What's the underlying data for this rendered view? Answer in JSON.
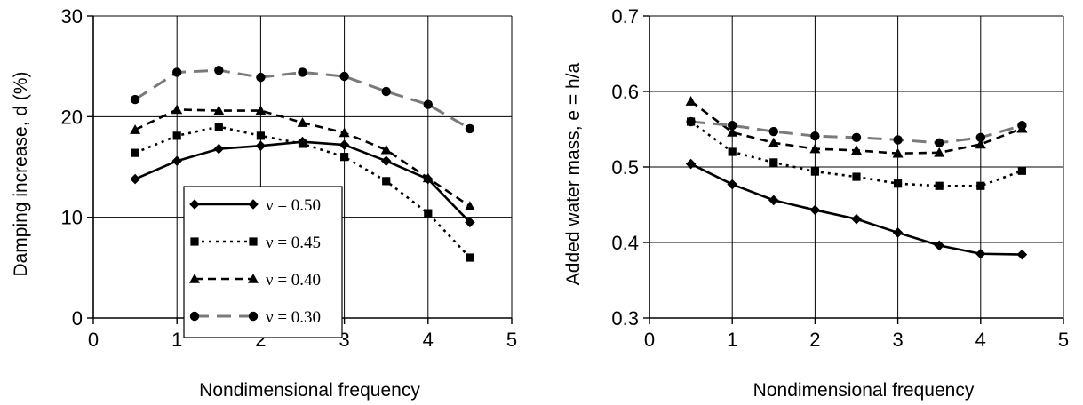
{
  "chart_data": [
    {
      "type": "line",
      "xlabel": "Nondimensional frequency",
      "ylabel": "Damping increase, d (%)",
      "xlim": [
        0,
        5
      ],
      "ylim": [
        0,
        30
      ],
      "xticks": [
        "0",
        "1",
        "2",
        "3",
        "4",
        "5"
      ],
      "yticks": [
        "0",
        "10",
        "20",
        "30"
      ],
      "grid": true,
      "legend_placement": "bottom-center",
      "series": [
        {
          "name": "ν = 0.50",
          "style": "solid",
          "marker": "diamond",
          "x": [
            0.5,
            1,
            1.5,
            2,
            2.5,
            3,
            3.5,
            4,
            4.5
          ],
          "values": [
            13.8,
            15.6,
            16.8,
            17.1,
            17.5,
            17.2,
            15.6,
            13.8,
            9.5
          ]
        },
        {
          "name": "ν = 0.45",
          "style": "dotted",
          "marker": "square",
          "x": [
            0.5,
            1,
            1.5,
            2,
            2.5,
            3,
            3.5,
            4,
            4.5
          ],
          "values": [
            16.4,
            18.1,
            19.0,
            18.1,
            17.3,
            16.0,
            13.6,
            10.4,
            6.0
          ]
        },
        {
          "name": "ν = 0.40",
          "style": "dashed",
          "marker": "triangle",
          "x": [
            0.5,
            1,
            1.5,
            2,
            2.5,
            3,
            3.5,
            4,
            4.5
          ],
          "values": [
            18.7,
            20.7,
            20.6,
            20.6,
            19.4,
            18.4,
            16.7,
            13.9,
            11.1
          ]
        },
        {
          "name": "ν = 0.30",
          "style": "longdash",
          "marker": "circle",
          "x": [
            0.5,
            1,
            1.5,
            2,
            2.5,
            3,
            3.5,
            4,
            4.5
          ],
          "values": [
            21.7,
            24.4,
            24.6,
            23.9,
            24.4,
            24.0,
            22.5,
            21.2,
            18.8
          ]
        }
      ]
    },
    {
      "type": "line",
      "xlabel": "Nondimensional frequency",
      "ylabel": "Added water mass, e = h/a",
      "xlim": [
        0,
        5
      ],
      "ylim": [
        0.3,
        0.7
      ],
      "xticks": [
        "0",
        "1",
        "2",
        "3",
        "4",
        "5"
      ],
      "yticks": [
        "0.3",
        "0.4",
        "0.5",
        "0.6",
        "0.7"
      ],
      "grid": true,
      "series": [
        {
          "style": "solid",
          "marker": "diamond",
          "x": [
            0.5,
            1,
            1.5,
            2,
            2.5,
            3,
            3.5,
            4,
            4.5
          ],
          "values": [
            0.504,
            0.477,
            0.456,
            0.443,
            0.431,
            0.413,
            0.396,
            0.385,
            0.384
          ]
        },
        {
          "style": "dotted",
          "marker": "square",
          "x": [
            0.5,
            1,
            1.5,
            2,
            2.5,
            3,
            3.5,
            4,
            4.5
          ],
          "values": [
            0.56,
            0.52,
            0.506,
            0.494,
            0.487,
            0.478,
            0.475,
            0.475,
            0.495
          ]
        },
        {
          "style": "dashed",
          "marker": "triangle",
          "x": [
            0.5,
            1,
            1.5,
            2,
            2.5,
            3,
            3.5,
            4,
            4.5
          ],
          "values": [
            0.587,
            0.546,
            0.532,
            0.524,
            0.522,
            0.518,
            0.519,
            0.53,
            0.551
          ]
        },
        {
          "style": "longdash",
          "marker": "circle",
          "x": [
            0.5,
            1,
            1.5,
            2,
            2.5,
            3,
            3.5,
            4,
            4.5
          ],
          "values": [
            0.56,
            0.555,
            0.547,
            0.541,
            0.539,
            0.536,
            0.532,
            0.539,
            0.555
          ]
        }
      ]
    }
  ]
}
